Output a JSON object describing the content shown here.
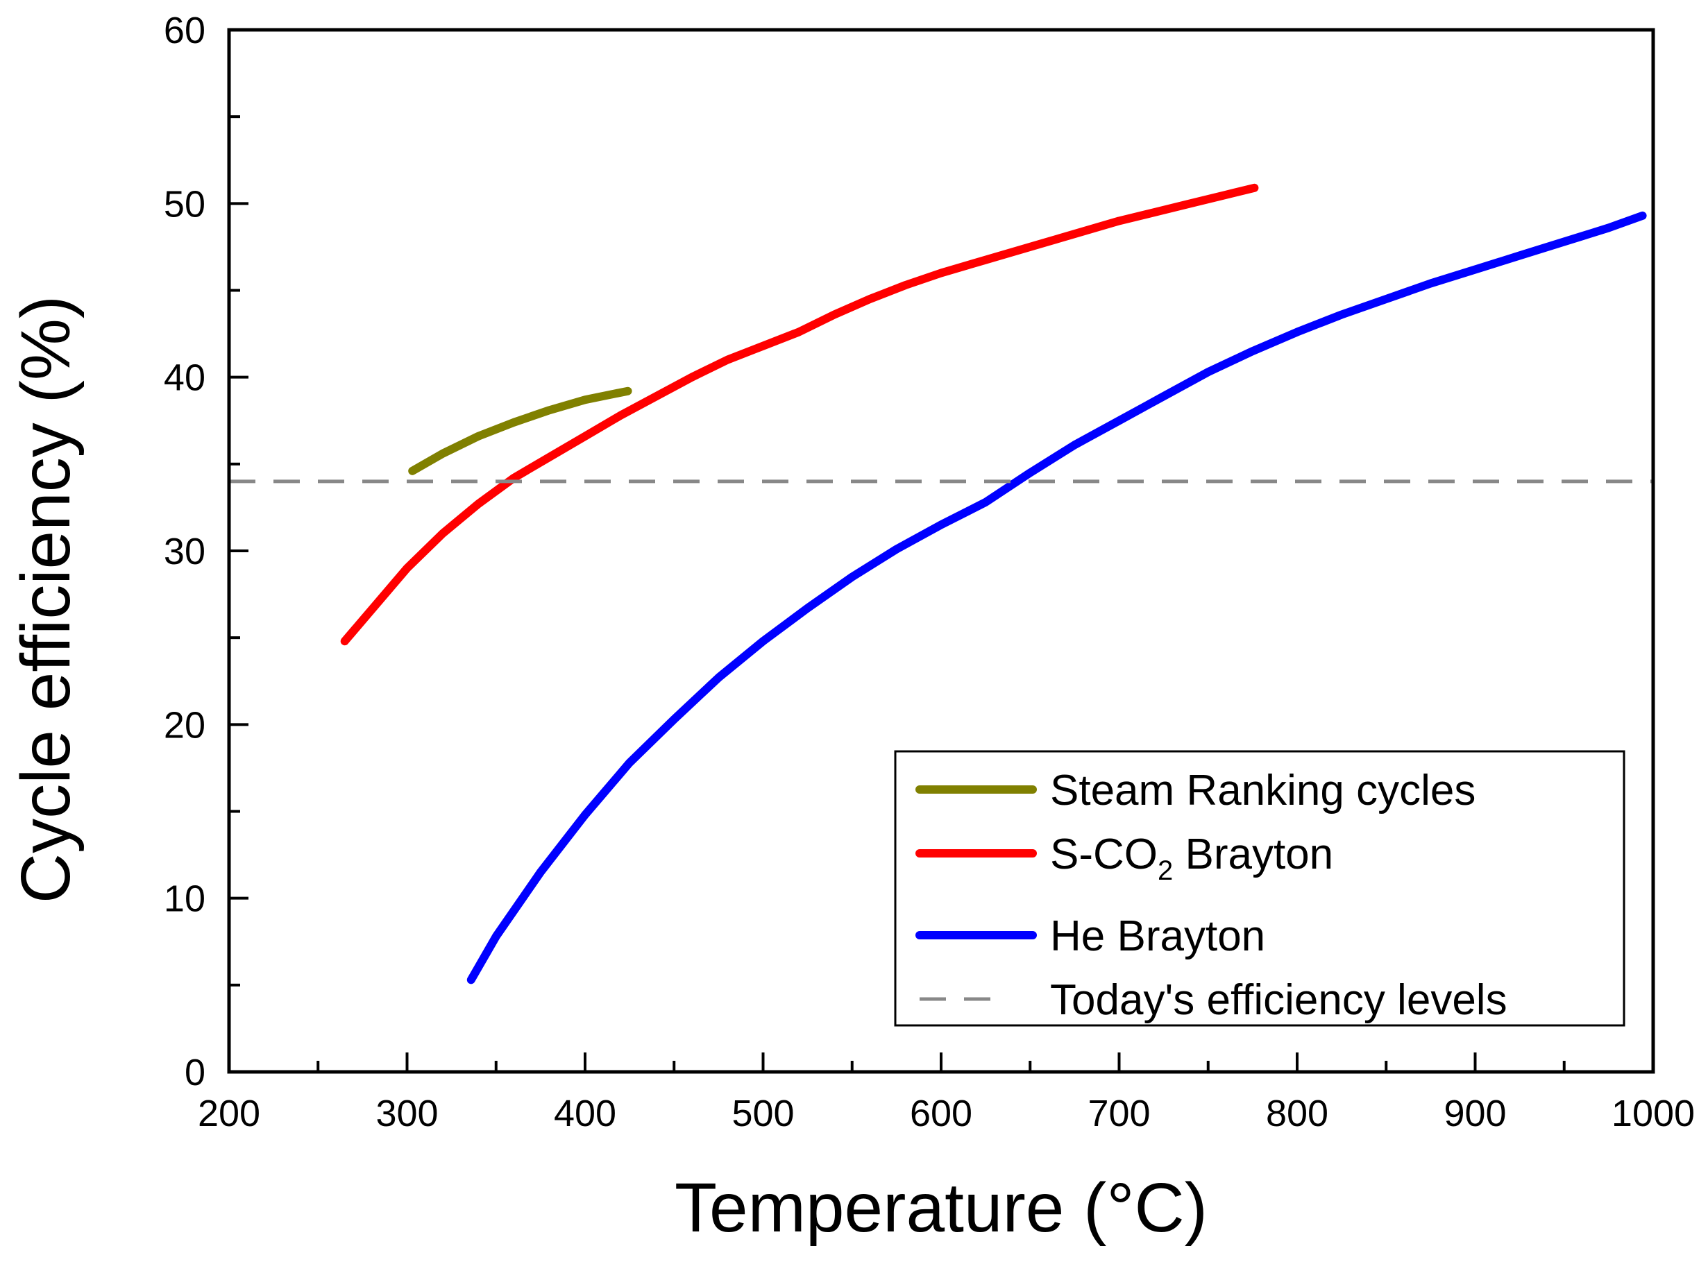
{
  "chart_data": {
    "type": "line",
    "title": "",
    "xlabel": "Temperature (°C)",
    "ylabel": "Cycle efficiency (%)",
    "xlim": [
      200,
      1000
    ],
    "ylim": [
      0,
      60
    ],
    "xticks": [
      "200",
      "300",
      "400",
      "500",
      "600",
      "700",
      "800",
      "900",
      "1000"
    ],
    "yticks": [
      "0",
      "10",
      "20",
      "30",
      "40",
      "50",
      "60"
    ],
    "grid": false,
    "legend_position": "bottom-right",
    "series": [
      {
        "name": "Steam Ranking cycles",
        "color": "#808000",
        "style": "solid",
        "x": [
          303,
          320,
          340,
          360,
          380,
          400,
          424
        ],
        "y": [
          34.6,
          35.6,
          36.6,
          37.4,
          38.1,
          38.7,
          39.2
        ]
      },
      {
        "name": "S-CO2 Brayton",
        "color": "#ff0000",
        "style": "solid",
        "x": [
          265,
          280,
          300,
          320,
          340,
          360,
          380,
          400,
          420,
          440,
          460,
          480,
          500,
          520,
          540,
          560,
          580,
          600,
          620,
          640,
          660,
          680,
          700,
          720,
          740,
          760,
          776
        ],
        "y": [
          24.8,
          26.6,
          29.0,
          31.0,
          32.7,
          34.2,
          35.4,
          36.6,
          37.8,
          38.9,
          40.0,
          41.0,
          41.8,
          42.6,
          43.6,
          44.5,
          45.3,
          46.0,
          46.6,
          47.2,
          47.8,
          48.4,
          49.0,
          49.5,
          50.0,
          50.5,
          50.9
        ]
      },
      {
        "name": "He Brayton",
        "color": "#0000ff",
        "style": "solid",
        "x": [
          336,
          350,
          375,
          400,
          425,
          450,
          475,
          500,
          525,
          550,
          575,
          600,
          625,
          650,
          675,
          700,
          725,
          750,
          775,
          800,
          825,
          850,
          875,
          900,
          925,
          950,
          975,
          994
        ],
        "y": [
          5.3,
          7.8,
          11.5,
          14.8,
          17.8,
          20.3,
          22.7,
          24.8,
          26.7,
          28.5,
          30.1,
          31.5,
          32.8,
          34.5,
          36.1,
          37.5,
          38.9,
          40.3,
          41.5,
          42.6,
          43.6,
          44.5,
          45.4,
          46.2,
          47.0,
          47.8,
          48.6,
          49.3
        ]
      },
      {
        "name": "Today's efficiency levels",
        "color": "#888888",
        "style": "dashed",
        "x": [
          200,
          1000
        ],
        "y": [
          34.0,
          34.0
        ]
      }
    ],
    "legend": {
      "entries": [
        {
          "label": "Steam Ranking cycles",
          "color": "#808000",
          "style": "solid"
        },
        {
          "label_main": "S-CO",
          "label_sub": "2",
          "label_after": " Brayton",
          "color": "#ff0000",
          "style": "solid"
        },
        {
          "label": "He Brayton",
          "color": "#0000ff",
          "style": "solid"
        },
        {
          "label": "Today's efficiency levels",
          "color": "#888888",
          "style": "dashed"
        }
      ]
    }
  }
}
